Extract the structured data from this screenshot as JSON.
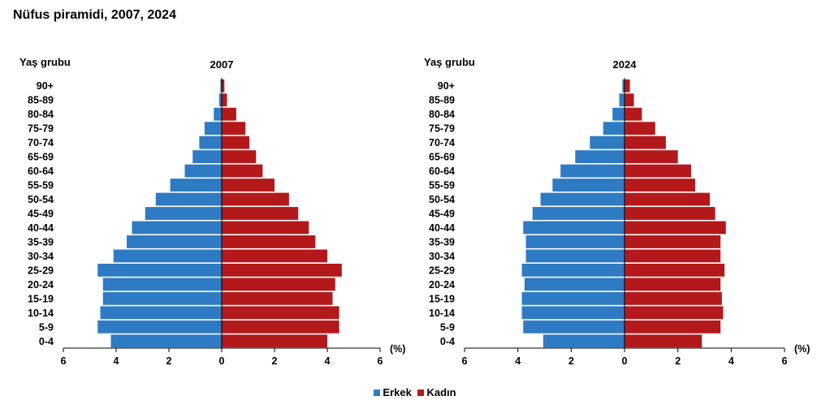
{
  "title": "Nüfus piramidi, 2007, 2024",
  "legend": {
    "male": "Erkek",
    "female": "Kadın"
  },
  "colors": {
    "male": "#2e7bc4",
    "female": "#b3191b",
    "axis": "#000000"
  },
  "chart_data": [
    {
      "type": "bar",
      "orientation": "horizontal-population-pyramid",
      "title": "2007",
      "ylabel": "Yaş grubu",
      "xlabel": "(%)",
      "xlim": [
        -6,
        6
      ],
      "x_ticks": [
        "6",
        "4",
        "2",
        "0",
        "2",
        "4",
        "6"
      ],
      "categories": [
        "0-4",
        "5-9",
        "10-14",
        "15-19",
        "20-24",
        "25-29",
        "30-34",
        "35-39",
        "40-44",
        "45-49",
        "50-54",
        "55-59",
        "60-64",
        "65-69",
        "70-74",
        "75-79",
        "80-84",
        "85-89",
        "90+"
      ],
      "series": [
        {
          "name": "Erkek",
          "values": [
            4.2,
            4.7,
            4.6,
            4.5,
            4.5,
            4.7,
            4.1,
            3.6,
            3.4,
            2.9,
            2.5,
            1.95,
            1.4,
            1.1,
            0.85,
            0.65,
            0.3,
            0.1,
            0.05
          ]
        },
        {
          "name": "Kadın",
          "values": [
            4.0,
            4.45,
            4.45,
            4.2,
            4.3,
            4.55,
            4.0,
            3.55,
            3.3,
            2.9,
            2.55,
            2.0,
            1.55,
            1.3,
            1.05,
            0.9,
            0.55,
            0.2,
            0.1
          ]
        }
      ]
    },
    {
      "type": "bar",
      "orientation": "horizontal-population-pyramid",
      "title": "2024",
      "ylabel": "Yaş grubu",
      "xlabel": "(%)",
      "xlim": [
        -6,
        6
      ],
      "x_ticks": [
        "6",
        "4",
        "2",
        "0",
        "2",
        "4",
        "6"
      ],
      "categories": [
        "0-4",
        "5-9",
        "10-14",
        "15-19",
        "20-24",
        "25-29",
        "30-34",
        "35-39",
        "40-44",
        "45-49",
        "50-54",
        "55-59",
        "60-64",
        "65-69",
        "70-74",
        "75-79",
        "80-84",
        "85-89",
        "90+"
      ],
      "series": [
        {
          "name": "Erkek",
          "values": [
            3.05,
            3.8,
            3.85,
            3.85,
            3.75,
            3.85,
            3.7,
            3.7,
            3.8,
            3.45,
            3.15,
            2.7,
            2.4,
            1.85,
            1.3,
            0.8,
            0.45,
            0.2,
            0.08
          ]
        },
        {
          "name": "Kadın",
          "values": [
            2.9,
            3.6,
            3.7,
            3.65,
            3.6,
            3.75,
            3.6,
            3.6,
            3.8,
            3.4,
            3.2,
            2.65,
            2.5,
            2.0,
            1.55,
            1.15,
            0.65,
            0.35,
            0.2
          ]
        }
      ]
    }
  ]
}
